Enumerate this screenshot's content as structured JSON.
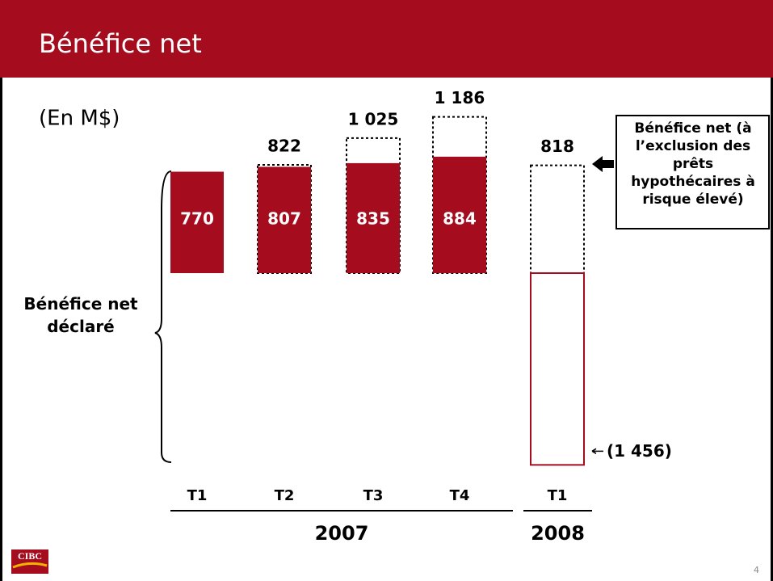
{
  "chart_data": {
    "type": "bar",
    "title": "Bénéfice net",
    "subtitle": "(En M$)",
    "categories": [
      "T1",
      "T2",
      "T3",
      "T4",
      "T1"
    ],
    "category_groups": [
      {
        "name": "2007",
        "count": 4
      },
      {
        "name": "2008",
        "count": 1
      }
    ],
    "series": [
      {
        "name": "Bénéfice net déclaré",
        "color": "#a50d1f",
        "values": [
          770,
          807,
          835,
          884,
          -1456
        ],
        "value_labels": [
          "770",
          "807",
          "835",
          "884",
          "(1 456)"
        ]
      },
      {
        "name": "Bénéfice net (à l’exclusion des prêts hypothécaires à risque élevé)",
        "color": "#000000",
        "values": [
          null,
          822,
          1025,
          1186,
          818
        ],
        "value_labels": [
          null,
          "822",
          "1 025",
          "1 186",
          "818"
        ]
      }
    ]
  },
  "footer": {
    "logo": "CIBC",
    "page": "4"
  }
}
